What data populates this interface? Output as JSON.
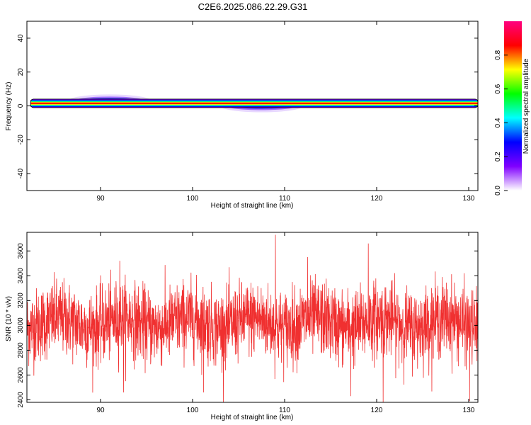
{
  "title": "C2E6.2025.086.22.29.G31",
  "chart_data": [
    {
      "type": "heatmap",
      "xlabel": "Height of straight line (km)",
      "ylabel": "Frequency (Hz)",
      "xlim": [
        82,
        131
      ],
      "ylim": [
        -50,
        50
      ],
      "x_ticks": [
        90,
        100,
        110,
        120,
        130
      ],
      "y_ticks": [
        -40,
        -20,
        0,
        20,
        40
      ],
      "colorbar": {
        "label": "Normalized spectral amplitude",
        "range": [
          0,
          1
        ],
        "ticks": [
          0.0,
          0.2,
          0.4,
          0.6,
          0.8
        ],
        "colormap": [
          "#ffffff",
          "#8000ff",
          "#0000ff",
          "#00ffff",
          "#00ff00",
          "#ffff00",
          "#ff0000",
          "#ff0080"
        ]
      },
      "band": {
        "center_freq_hz": 1.5,
        "x_range": [
          82.4,
          131
        ],
        "peak_amplitude": 1.0
      },
      "weak_patches": [
        {
          "x_range": [
            86.5,
            95.5
          ],
          "center_freq_hz": 3.0,
          "peak_amplitude": 0.15
        },
        {
          "x_range": [
            103,
            112
          ],
          "center_freq_hz": 0.0,
          "peak_amplitude": 0.1
        }
      ]
    },
    {
      "type": "line",
      "xlabel": "Height of straight line (km)",
      "ylabel": "SNR (10 * v/v)",
      "xlim": [
        82,
        131
      ],
      "ylim": [
        2380,
        3750
      ],
      "x_ticks": [
        90,
        100,
        110,
        120,
        130
      ],
      "y_ticks": [
        2400,
        2600,
        2800,
        3000,
        3200,
        3400,
        3600
      ],
      "series": [
        {
          "color": "#f03030",
          "mean": 3020,
          "std": 150,
          "points": 2400,
          "x_range": [
            82,
            131
          ],
          "notable_peaks": [
            [
              109.0,
              3730
            ],
            [
              119.1,
              3660
            ],
            [
              112.5,
              3550
            ],
            [
              92.1,
              3520
            ],
            [
              130.1,
              3500
            ]
          ],
          "notable_dips": [
            [
              92.5,
              2460
            ],
            [
              117.2,
              2430
            ],
            [
              120.7,
              2380
            ],
            [
              130.1,
              2390
            ],
            [
              101.2,
              2460
            ]
          ]
        }
      ]
    }
  ]
}
